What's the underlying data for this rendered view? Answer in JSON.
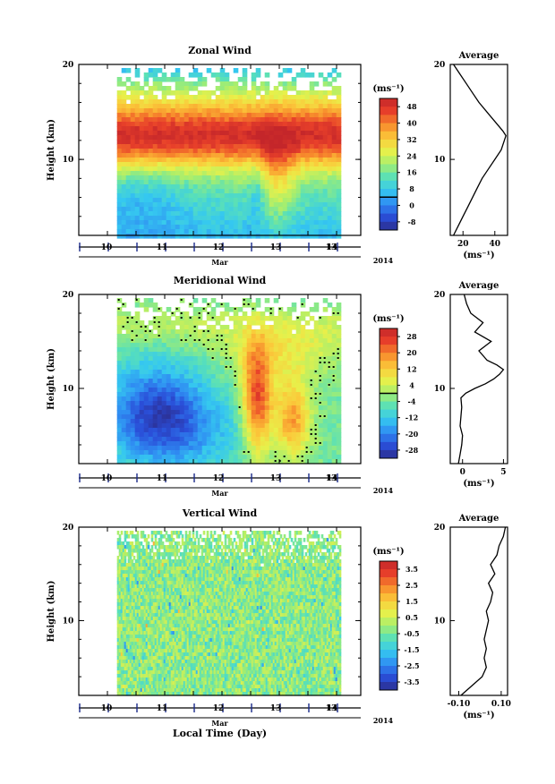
{
  "figure": {
    "x_axis_title": "Local Time (Day)",
    "month_label": "Mar",
    "year_label": "2014",
    "unit_label": "(ms⁻¹)",
    "height_axis_label": "Height (km)",
    "average_title": "Average"
  },
  "chart_data": [
    {
      "type": "heatmap",
      "title": "Zonal Wind",
      "xlabel": "Local Time (Day)",
      "ylabel": "Height (km)",
      "x_ticks": [
        "10",
        "11",
        "12",
        "13",
        "13",
        "14"
      ],
      "xlim_days": [
        10.0,
        14.8
      ],
      "y_ticks": [
        "20",
        "10"
      ],
      "ylim": [
        2,
        20
      ],
      "data_coverage_days": [
        10.65,
        14.45
      ],
      "colorbar": {
        "unit": "(ms⁻¹)",
        "ticks": [
          "48",
          "40",
          "32",
          "24",
          "16",
          "8",
          "0",
          "-8"
        ],
        "range": [
          -12,
          52
        ],
        "zero_contour": true
      },
      "features": [
        {
          "description": "jet maximum",
          "height_km": [
            11,
            14
          ],
          "value": 45
        },
        {
          "description": "strong westerlies day 13.0-13.5",
          "height_km": [
            5,
            10
          ],
          "value": 40
        }
      ],
      "average_profile": {
        "title": "Average",
        "xlabel": "(ms⁻¹)",
        "x_ticks": [
          "20",
          "40"
        ],
        "xlim": [
          12,
          48
        ],
        "heights": [
          2.0,
          3,
          4,
          5,
          6,
          7,
          8,
          9,
          10,
          11,
          12,
          12.5,
          13,
          14,
          15,
          16,
          17,
          18,
          19,
          20
        ],
        "values": [
          14,
          17,
          20,
          23,
          26,
          29,
          32,
          36,
          40,
          44,
          46,
          47,
          45,
          40,
          35,
          30,
          26,
          22,
          18,
          14
        ]
      }
    },
    {
      "type": "heatmap",
      "title": "Meridional Wind",
      "xlabel": "Local Time (Day)",
      "ylabel": "Height (km)",
      "x_ticks": [
        "10",
        "11",
        "12",
        "13",
        "13",
        "14"
      ],
      "xlim_days": [
        10.0,
        14.8
      ],
      "y_ticks": [
        "20",
        "10"
      ],
      "ylim": [
        2,
        20
      ],
      "data_coverage_days": [
        10.65,
        14.45
      ],
      "colorbar": {
        "unit": "(ms⁻¹)",
        "ticks": [
          "28",
          "20",
          "12",
          "4",
          "-4",
          "-12",
          "-20",
          "-28"
        ],
        "range": [
          -32,
          32
        ],
        "zero_contour": true
      },
      "features": [
        {
          "description": "southward flow",
          "height_km": [
            3,
            12
          ],
          "value": -24
        },
        {
          "description": "northward flow day 13",
          "height_km": [
            4,
            14
          ],
          "value": 28
        }
      ],
      "average_profile": {
        "title": "Average",
        "xlabel": "(ms⁻¹)",
        "x_ticks": [
          "0",
          "5"
        ],
        "xlim": [
          -1.5,
          5.5
        ],
        "heights": [
          2.0,
          3,
          4,
          5,
          6,
          7,
          8,
          9,
          9.5,
          10,
          10.5,
          11,
          11.5,
          12,
          12.5,
          13,
          14,
          15,
          16,
          17,
          18,
          19,
          20
        ],
        "values": [
          -0.5,
          -0.3,
          -0.1,
          0.0,
          -0.3,
          -0.2,
          -0.1,
          -0.2,
          0.4,
          1.5,
          2.8,
          3.8,
          4.5,
          5.0,
          4.2,
          3.0,
          2.0,
          3.5,
          1.5,
          2.5,
          1.0,
          0.5,
          0.2
        ]
      }
    },
    {
      "type": "heatmap",
      "title": "Vertical Wind",
      "xlabel": "Local Time (Day)",
      "ylabel": "Height (km)",
      "x_ticks": [
        "10",
        "11",
        "12",
        "13",
        "13",
        "14"
      ],
      "xlim_days": [
        10.0,
        14.8
      ],
      "y_ticks": [
        "20",
        "10"
      ],
      "ylim": [
        2,
        20
      ],
      "data_coverage_days": [
        10.65,
        14.45
      ],
      "colorbar": {
        "unit": "(ms⁻¹)",
        "ticks": [
          "3.5",
          "2.5",
          "1.5",
          "0.5",
          "-0.5",
          "-1.5",
          "-2.5",
          "-3.5"
        ],
        "range": [
          -4,
          4
        ],
        "zero_contour": false
      },
      "features": [
        {
          "description": "mostly near-zero, slightly negative",
          "height_km": [
            2,
            20
          ],
          "value": -0.2
        }
      ],
      "average_profile": {
        "title": "Average",
        "xlabel": "(ms⁻¹)",
        "x_ticks": [
          "-0.10",
          "0.10"
        ],
        "xlim": [
          -0.14,
          0.13
        ],
        "heights": [
          2.0,
          3,
          4,
          5,
          6,
          7,
          8,
          9,
          10,
          11,
          12,
          13,
          14,
          15,
          16,
          17,
          18,
          19,
          20
        ],
        "values": [
          -0.09,
          -0.04,
          0.01,
          0.03,
          0.02,
          0.03,
          0.02,
          0.03,
          0.04,
          0.03,
          0.05,
          0.06,
          0.04,
          0.07,
          0.05,
          0.08,
          0.09,
          0.11,
          0.12
        ]
      }
    }
  ]
}
